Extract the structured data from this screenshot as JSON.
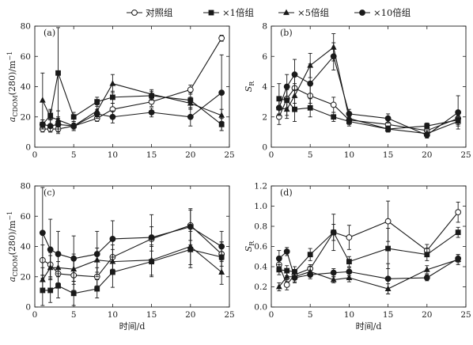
{
  "legend": [
    {
      "name": "对照组",
      "marker": "circle-open"
    },
    {
      "name": "×1倍组",
      "marker": "square"
    },
    {
      "name": "×5倍组",
      "marker": "triangle"
    },
    {
      "name": "×10倍组",
      "marker": "circle-filled"
    }
  ],
  "xlabel": "时间/d",
  "chart_data": [
    {
      "type": "line",
      "panel": "(a)",
      "ylabel_parts": [
        "a",
        "CDOM",
        "(280)/m",
        "−1"
      ],
      "xlim": [
        0,
        25
      ],
      "ylim": [
        0,
        80
      ],
      "xticks": [
        0,
        5,
        10,
        15,
        20,
        25
      ],
      "yticks": [
        0,
        20,
        40,
        60,
        80
      ],
      "series": [
        {
          "name": "对照组",
          "marker": "circle-open",
          "points": [
            [
              1,
              12,
              2
            ],
            [
              2,
              12,
              2
            ],
            [
              3,
              12,
              3
            ],
            [
              5,
              14,
              2
            ],
            [
              8,
              19,
              2
            ],
            [
              10,
              25,
              4
            ],
            [
              15,
              30,
              3
            ],
            [
              20,
              38,
              3
            ],
            [
              24,
              72,
              2
            ]
          ]
        },
        {
          "name": "×1倍组",
          "marker": "square",
          "points": [
            [
              1,
              15,
              3
            ],
            [
              2,
              21,
              3
            ],
            [
              3,
              49,
              30
            ],
            [
              5,
              20,
              3
            ],
            [
              8,
              30,
              3
            ],
            [
              10,
              33,
              4
            ],
            [
              15,
              34,
              3
            ],
            [
              20,
              31,
              5
            ],
            [
              24,
              15,
              4
            ]
          ]
        },
        {
          "name": "×5倍组",
          "marker": "triangle",
          "points": [
            [
              1,
              31,
              18
            ],
            [
              2,
              20,
              5
            ],
            [
              3,
              18,
              6
            ],
            [
              5,
              14,
              3
            ],
            [
              8,
              24,
              4
            ],
            [
              10,
              42,
              6
            ],
            [
              15,
              35,
              3
            ],
            [
              20,
              29,
              4
            ],
            [
              24,
              21,
              4
            ]
          ]
        },
        {
          "name": "×10倍组",
          "marker": "circle-filled",
          "points": [
            [
              1,
              15,
              3
            ],
            [
              2,
              14,
              4
            ],
            [
              3,
              15,
              5
            ],
            [
              5,
              14,
              3
            ],
            [
              8,
              22,
              3
            ],
            [
              10,
              20,
              4
            ],
            [
              15,
              23,
              3
            ],
            [
              20,
              20,
              6
            ],
            [
              24,
              36,
              25
            ]
          ]
        }
      ]
    },
    {
      "type": "line",
      "panel": "(b)",
      "ylabel_parts": [
        "S",
        "R",
        "",
        ""
      ],
      "xlim": [
        0,
        25
      ],
      "ylim": [
        0,
        8
      ],
      "xticks": [
        0,
        5,
        10,
        15,
        20,
        25
      ],
      "yticks": [
        0,
        2,
        4,
        6,
        8
      ],
      "series": [
        {
          "name": "对照组",
          "marker": "circle-open",
          "points": [
            [
              1,
              2.0,
              0.5
            ],
            [
              2,
              3.2,
              0.6
            ],
            [
              3,
              3.9,
              1.0
            ],
            [
              5,
              3.4,
              0.8
            ],
            [
              8,
              2.8,
              0.5
            ],
            [
              10,
              1.8,
              0.3
            ],
            [
              15,
              1.5,
              0.3
            ],
            [
              20,
              1.1,
              0.2
            ],
            [
              24,
              1.9,
              0.3
            ]
          ]
        },
        {
          "name": "×1倍组",
          "marker": "square",
          "points": [
            [
              1,
              3.2,
              1.0
            ],
            [
              2,
              3.1,
              1.0
            ],
            [
              3,
              2.5,
              0.8
            ],
            [
              5,
              2.6,
              0.6
            ],
            [
              8,
              2.0,
              0.3
            ],
            [
              10,
              1.7,
              0.3
            ],
            [
              15,
              1.2,
              0.2
            ],
            [
              20,
              1.4,
              0.2
            ],
            [
              24,
              1.8,
              0.3
            ]
          ]
        },
        {
          "name": "×5倍组",
          "marker": "triangle",
          "points": [
            [
              1,
              2.6,
              0.5
            ],
            [
              2,
              2.5,
              0.6
            ],
            [
              3,
              3.4,
              0.8
            ],
            [
              5,
              5.4,
              0.8
            ],
            [
              8,
              6.6,
              0.9
            ],
            [
              10,
              1.9,
              0.3
            ],
            [
              15,
              1.2,
              0.2
            ],
            [
              20,
              0.9,
              0.2
            ],
            [
              24,
              1.7,
              0.3
            ]
          ]
        },
        {
          "name": "×10倍组",
          "marker": "circle-filled",
          "points": [
            [
              1,
              2.6,
              0.5
            ],
            [
              2,
              4.0,
              0.8
            ],
            [
              3,
              4.8,
              1.0
            ],
            [
              5,
              4.2,
              1.3
            ],
            [
              8,
              6.0,
              0.9
            ],
            [
              10,
              2.2,
              0.3
            ],
            [
              15,
              1.9,
              0.3
            ],
            [
              20,
              0.8,
              0.2
            ],
            [
              24,
              2.3,
              1.1
            ]
          ]
        }
      ]
    },
    {
      "type": "line",
      "panel": "(c)",
      "ylabel_parts": [
        "a",
        "CDOM",
        "(280)/m",
        "−1"
      ],
      "xlim": [
        0,
        25
      ],
      "ylim": [
        0,
        80
      ],
      "xticks": [
        0,
        5,
        10,
        15,
        20,
        25
      ],
      "yticks": [
        0,
        20,
        40,
        60,
        80
      ],
      "series": [
        {
          "name": "对照组",
          "marker": "circle-open",
          "points": [
            [
              1,
              31,
              10
            ],
            [
              2,
              28,
              8
            ],
            [
              3,
              22,
              8
            ],
            [
              5,
              21,
              10
            ],
            [
              8,
              20,
              6
            ],
            [
              10,
              33,
              8
            ],
            [
              15,
              45,
              8
            ],
            [
              20,
              54,
              10
            ],
            [
              24,
              35,
              8
            ]
          ]
        },
        {
          "name": "×1倍组",
          "marker": "square",
          "points": [
            [
              1,
              11,
              10
            ],
            [
              2,
              11,
              8
            ],
            [
              3,
              14,
              8
            ],
            [
              5,
              9,
              8
            ],
            [
              8,
              12,
              6
            ],
            [
              10,
              23,
              10
            ],
            [
              15,
              30,
              10
            ],
            [
              20,
              38,
              12
            ],
            [
              24,
              33,
              10
            ]
          ]
        },
        {
          "name": "×5倍组",
          "marker": "triangle",
          "points": [
            [
              1,
              18,
              8
            ],
            [
              2,
              26,
              8
            ],
            [
              3,
              26,
              10
            ],
            [
              5,
              25,
              10
            ],
            [
              8,
              31,
              8
            ],
            [
              10,
              30,
              8
            ],
            [
              15,
              31,
              10
            ],
            [
              20,
              40,
              12
            ],
            [
              24,
              23,
              8
            ]
          ]
        },
        {
          "name": "×10倍组",
          "marker": "circle-filled",
          "points": [
            [
              1,
              49,
              30
            ],
            [
              2,
              38,
              20
            ],
            [
              3,
              35,
              15
            ],
            [
              5,
              32,
              15
            ],
            [
              8,
              35,
              15
            ],
            [
              10,
              45,
              12
            ],
            [
              15,
              46,
              15
            ],
            [
              20,
              53,
              12
            ],
            [
              24,
              40,
              10
            ]
          ]
        }
      ]
    },
    {
      "type": "line",
      "panel": "(d)",
      "ylabel_parts": [
        "S",
        "R",
        "",
        ""
      ],
      "xlim": [
        0,
        25
      ],
      "ylim": [
        0,
        1.2
      ],
      "xticks": [
        0,
        5,
        10,
        15,
        20,
        25
      ],
      "yticks": [
        0,
        0.2,
        0.4,
        0.6,
        0.8,
        1.0,
        1.2
      ],
      "series": [
        {
          "name": "对照组",
          "marker": "circle-open",
          "points": [
            [
              1,
              0.42,
              0.05
            ],
            [
              2,
              0.22,
              0.05
            ],
            [
              3,
              0.32,
              0.05
            ],
            [
              5,
              0.38,
              0.04
            ],
            [
              8,
              0.74,
              0.08
            ],
            [
              10,
              0.69,
              0.12
            ],
            [
              15,
              0.85,
              0.2
            ],
            [
              20,
              0.56,
              0.06
            ],
            [
              24,
              0.94,
              0.1
            ]
          ]
        },
        {
          "name": "×1倍组",
          "marker": "square",
          "points": [
            [
              1,
              0.37,
              0.05
            ],
            [
              2,
              0.36,
              0.05
            ],
            [
              3,
              0.35,
              0.05
            ],
            [
              5,
              0.52,
              0.06
            ],
            [
              8,
              0.74,
              0.18
            ],
            [
              10,
              0.45,
              0.05
            ],
            [
              15,
              0.58,
              0.2
            ],
            [
              20,
              0.52,
              0.06
            ],
            [
              24,
              0.74,
              0.05
            ]
          ]
        },
        {
          "name": "×5倍组",
          "marker": "triangle",
          "points": [
            [
              1,
              0.2,
              0.04
            ],
            [
              2,
              0.3,
              0.05
            ],
            [
              3,
              0.3,
              0.05
            ],
            [
              5,
              0.35,
              0.05
            ],
            [
              8,
              0.27,
              0.03
            ],
            [
              10,
              0.29,
              0.04
            ],
            [
              15,
              0.18,
              0.05
            ],
            [
              20,
              0.37,
              0.04
            ],
            [
              24,
              0.47,
              0.05
            ]
          ]
        },
        {
          "name": "×10倍组",
          "marker": "circle-filled",
          "points": [
            [
              1,
              0.48,
              0.08
            ],
            [
              2,
              0.55,
              0.04
            ],
            [
              3,
              0.29,
              0.05
            ],
            [
              5,
              0.32,
              0.04
            ],
            [
              8,
              0.34,
              0.04
            ],
            [
              10,
              0.35,
              0.04
            ],
            [
              15,
              0.28,
              0.15
            ],
            [
              20,
              0.29,
              0.03
            ],
            [
              24,
              0.48,
              0.04
            ]
          ]
        }
      ]
    }
  ]
}
